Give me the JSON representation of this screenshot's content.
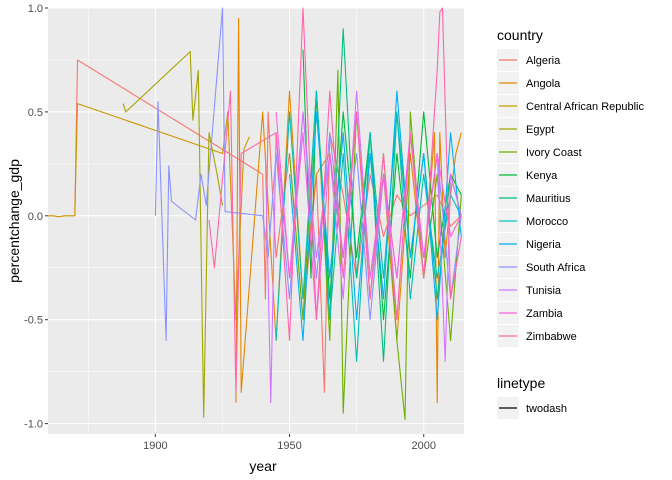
{
  "chart_data": {
    "type": "line",
    "xlabel": "year",
    "ylabel": "percentchange_gdp",
    "xlim": [
      1860,
      2015
    ],
    "ylim": [
      -1.05,
      1.0
    ],
    "x_ticks": [
      1900,
      1950,
      2000
    ],
    "x_tick_labels": [
      "1900",
      "1950",
      "2000"
    ],
    "y_ticks": [
      -1.0,
      -0.5,
      0.0,
      0.5,
      1.0
    ],
    "y_tick_labels": [
      "-1.0",
      "-0.5",
      "0.0",
      "0.5",
      "1.0"
    ],
    "grid": true,
    "legend_position": "right",
    "legend_title": "country",
    "linetype_legend": {
      "title": "linetype",
      "label": "twodash"
    },
    "series": [
      {
        "name": "Algeria",
        "color": "#F8766D",
        "x": [
          1870,
          1871,
          1940,
          1941,
          1942,
          1945,
          1950,
          1955,
          1960,
          1963,
          1965,
          1970,
          1975,
          1980,
          1985,
          1990,
          1995,
          2000,
          2005,
          2010,
          2014
        ],
        "y": [
          0.0,
          0.75,
          0.2,
          -0.4,
          0.5,
          -0.2,
          0.3,
          -0.5,
          0.2,
          -0.85,
          0.4,
          0.1,
          -0.3,
          0.2,
          -0.1,
          0.1,
          0.0,
          0.05,
          0.1,
          -0.05,
          0.0
        ]
      },
      {
        "name": "Angola",
        "color": "#E58700",
        "x": [
          1930,
          1931,
          1932,
          1940,
          1945,
          1950,
          1955,
          1960,
          1965,
          1970,
          1975,
          1980,
          1985,
          1990,
          1995,
          2000,
          2004,
          2005,
          2006,
          2008,
          2010,
          2012,
          2014
        ],
        "y": [
          -0.9,
          0.95,
          -0.85,
          0.5,
          -0.6,
          0.6,
          -0.4,
          0.2,
          0.3,
          -0.2,
          0.5,
          -0.3,
          0.2,
          -0.6,
          0.3,
          -0.3,
          0.4,
          -0.9,
          0.4,
          -0.2,
          0.1,
          0.3,
          0.4
        ]
      },
      {
        "name": "Central African Republic",
        "color": "#C99800",
        "x": [
          1860,
          1862,
          1864,
          1866,
          1868,
          1870,
          1871,
          1925,
          1927,
          1930,
          1933,
          1935
        ],
        "y": [
          0.0,
          0.0,
          -0.005,
          0.0,
          0.0,
          0.0,
          0.54,
          0.3,
          0.5,
          -0.5,
          0.32,
          0.38
        ]
      },
      {
        "name": "Egypt",
        "color": "#A3A500",
        "x": [
          1888,
          1889,
          1913,
          1914,
          1916,
          1918,
          1920,
          1923,
          1925
        ],
        "y": [
          0.54,
          0.5,
          0.79,
          0.46,
          0.7,
          -0.97,
          0.4,
          0.2,
          0.05
        ]
      },
      {
        "name": "Ivory Coast",
        "color": "#6BB100",
        "x": [
          1950,
          1955,
          1960,
          1965,
          1968,
          1970,
          1975,
          1980,
          1985,
          1990,
          1993,
          1995,
          2000,
          2005,
          2010,
          2014
        ],
        "y": [
          0.3,
          -0.5,
          0.6,
          -0.6,
          0.7,
          -0.95,
          0.5,
          -0.4,
          0.3,
          -0.6,
          -0.98,
          0.5,
          -0.3,
          0.2,
          -0.6,
          0.1
        ]
      },
      {
        "name": "Kenya",
        "color": "#00BA38",
        "x": [
          1955,
          1958,
          1960,
          1965,
          1970,
          1975,
          1980,
          1985,
          1990,
          1995,
          2000,
          2005,
          2010,
          2014
        ],
        "y": [
          0.8,
          -0.3,
          0.6,
          -0.4,
          0.5,
          -0.2,
          0.4,
          -0.5,
          0.3,
          -0.3,
          0.5,
          -0.2,
          0.2,
          0.1
        ]
      },
      {
        "name": "Mauritius",
        "color": "#00BF7D",
        "x": [
          1960,
          1965,
          1970,
          1975,
          1980,
          1985,
          1990,
          1995,
          2000,
          2005,
          2010,
          2014
        ],
        "y": [
          0.6,
          -0.5,
          0.9,
          -0.3,
          0.4,
          -0.7,
          0.5,
          -0.2,
          0.3,
          -0.4,
          0.2,
          0.0
        ]
      },
      {
        "name": "Morocco",
        "color": "#00C0B8",
        "x": [
          1945,
          1950,
          1955,
          1960,
          1965,
          1970,
          1975,
          1980,
          1985,
          1990,
          1995,
          2000,
          2005,
          2010,
          2014
        ],
        "y": [
          -0.6,
          0.5,
          -0.4,
          0.6,
          -0.5,
          0.3,
          -0.7,
          0.4,
          -0.3,
          0.5,
          -0.4,
          0.2,
          -0.3,
          0.1,
          0.0
        ]
      },
      {
        "name": "Nigeria",
        "color": "#00B0F6",
        "x": [
          1950,
          1955,
          1960,
          1965,
          1970,
          1975,
          1980,
          1985,
          1990,
          1995,
          2000,
          2005,
          2010,
          2014
        ],
        "y": [
          0.2,
          -0.6,
          0.5,
          -0.3,
          0.4,
          -0.5,
          0.3,
          -0.4,
          0.6,
          -0.2,
          0.3,
          -0.5,
          0.4,
          -0.1
        ]
      },
      {
        "name": "South Africa",
        "color": "#8B93FF",
        "x": [
          1900,
          1901,
          1904,
          1905,
          1906,
          1915,
          1917,
          1919,
          1925,
          1926,
          1940,
          1942,
          1945,
          1950,
          1955,
          1960,
          1965,
          1970,
          1975,
          1980,
          1985,
          1990,
          1995,
          2000,
          2005,
          2010,
          2014
        ],
        "y": [
          0.0,
          0.55,
          -0.6,
          0.24,
          0.07,
          -0.02,
          0.2,
          0.05,
          1.0,
          0.02,
          0.0,
          -0.2,
          0.3,
          -0.4,
          0.5,
          -0.3,
          0.4,
          -0.2,
          0.3,
          -0.5,
          0.2,
          -0.3,
          0.4,
          -0.2,
          0.3,
          -0.4,
          0.0
        ]
      },
      {
        "name": "Tunisia",
        "color": "#D575FE",
        "x": [
          1941,
          1943,
          1945,
          1950,
          1955,
          1960,
          1965,
          1970,
          1975,
          1980,
          1985,
          1990,
          1995,
          2000,
          2005,
          2008,
          2010,
          2014
        ],
        "y": [
          0.3,
          -0.9,
          0.4,
          -0.3,
          0.5,
          -0.2,
          0.3,
          -0.4,
          0.6,
          -0.3,
          0.2,
          -0.5,
          0.4,
          -0.2,
          0.3,
          -0.7,
          0.2,
          0.0
        ]
      },
      {
        "name": "Zambia",
        "color": "#F962DD",
        "x": [
          1945,
          1950,
          1955,
          1960,
          1965,
          1970,
          1975,
          1980,
          1985,
          1990,
          1995,
          2000,
          2005,
          2010,
          2014
        ],
        "y": [
          0.5,
          -0.3,
          0.4,
          -0.5,
          0.3,
          -0.2,
          0.5,
          -0.4,
          0.2,
          -0.3,
          0.4,
          -0.2,
          0.3,
          -0.1,
          0.0
        ]
      },
      {
        "name": "Zimbabwe",
        "color": "#FF65AC",
        "x": [
          1920,
          1922,
          1928,
          1930,
          1932,
          1945,
          1950,
          1955,
          1960,
          1965,
          1970,
          1975,
          1980,
          1985,
          1990,
          1995,
          2000,
          2005,
          2006,
          2007,
          2010,
          2014
        ],
        "y": [
          -0.02,
          -0.25,
          0.6,
          -0.85,
          0.3,
          0.4,
          -0.6,
          1.0,
          -0.5,
          0.6,
          -0.3,
          0.5,
          -0.4,
          0.3,
          -0.5,
          0.4,
          -0.3,
          0.7,
          0.98,
          1.0,
          -0.4,
          -0.1
        ]
      }
    ]
  }
}
